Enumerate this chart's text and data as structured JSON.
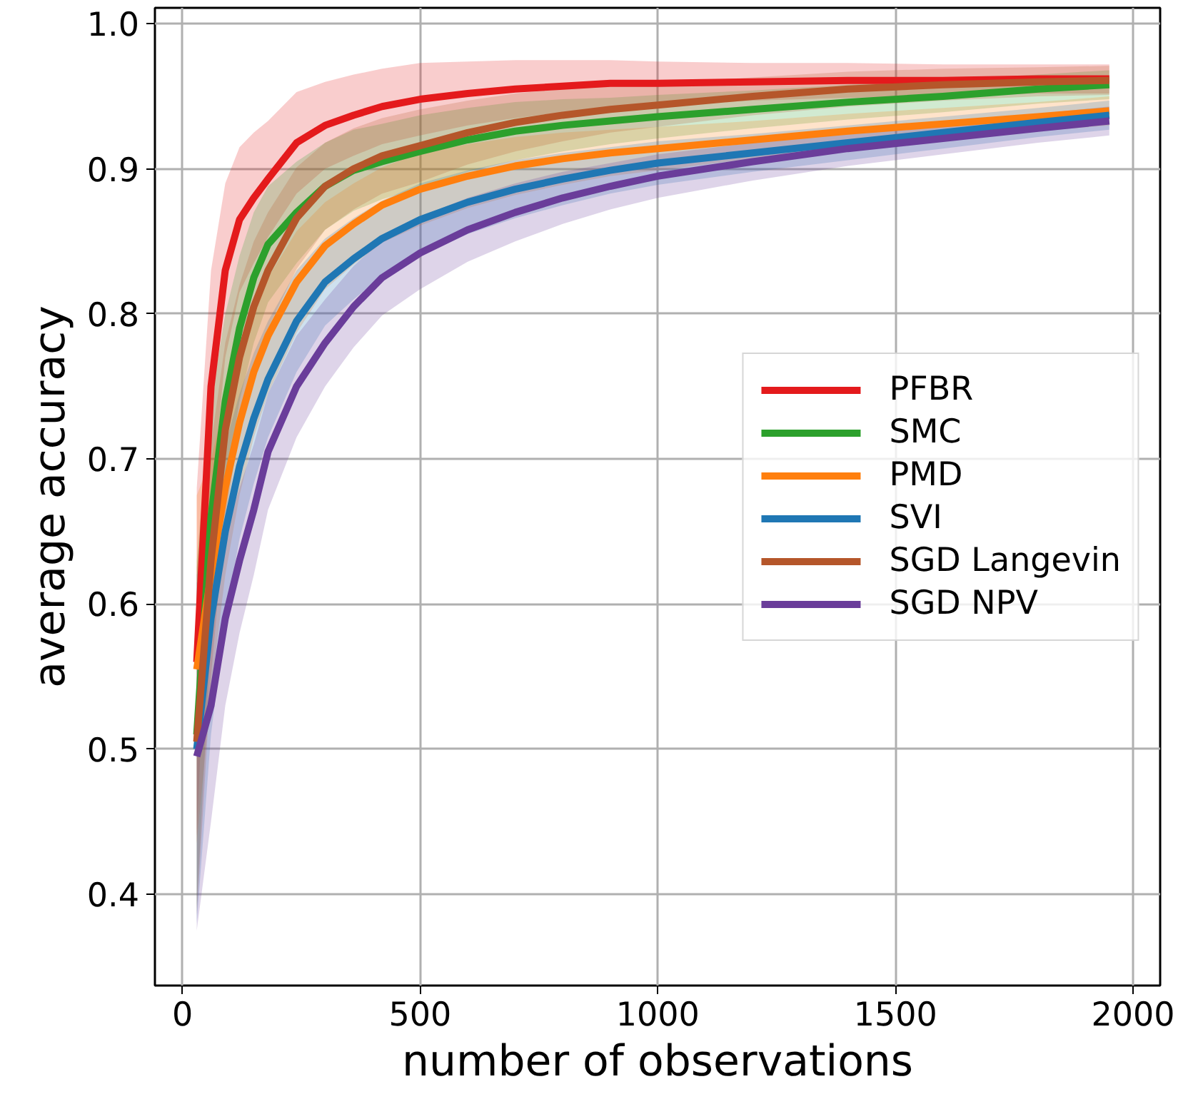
{
  "chart_data": {
    "type": "line",
    "xlabel": "number of observations",
    "ylabel": "average accuracy",
    "x": [
      30,
      60,
      90,
      120,
      150,
      180,
      240,
      300,
      360,
      420,
      500,
      600,
      700,
      800,
      900,
      1000,
      1200,
      1400,
      1600,
      1800,
      1950
    ],
    "xlim": [
      -58,
      2057
    ],
    "xticks": [
      0,
      500,
      1000,
      1500,
      2000
    ],
    "ylim": [
      0.337,
      1.011
    ],
    "yticks": [
      0.4,
      0.5,
      0.6,
      0.7,
      0.8,
      0.9,
      {
        "value": 1.0,
        "label": "1.0"
      }
    ],
    "grid": true,
    "legend": "right",
    "line_style": "solid",
    "series": [
      {
        "name": "PFBR",
        "color": "#e41a1c",
        "values": [
          0.56,
          0.75,
          0.83,
          0.865,
          0.88,
          0.893,
          0.918,
          0.93,
          0.937,
          0.943,
          0.948,
          0.952,
          0.955,
          0.957,
          0.959,
          0.959,
          0.96,
          0.961,
          0.961,
          0.962,
          0.962
        ],
        "lower": [
          0.44,
          0.67,
          0.77,
          0.815,
          0.835,
          0.853,
          0.883,
          0.9,
          0.909,
          0.917,
          0.923,
          0.93,
          0.935,
          0.939,
          0.943,
          0.944,
          0.947,
          0.949,
          0.95,
          0.952,
          0.952
        ],
        "upper": [
          0.68,
          0.83,
          0.89,
          0.915,
          0.925,
          0.933,
          0.953,
          0.96,
          0.965,
          0.969,
          0.973,
          0.974,
          0.975,
          0.975,
          0.975,
          0.974,
          0.973,
          0.973,
          0.972,
          0.972,
          0.972
        ]
      },
      {
        "name": "SMC",
        "color": "#2ca02c",
        "values": [
          0.51,
          0.66,
          0.74,
          0.79,
          0.825,
          0.848,
          0.87,
          0.888,
          0.899,
          0.905,
          0.912,
          0.92,
          0.926,
          0.93,
          0.933,
          0.936,
          0.941,
          0.946,
          0.95,
          0.955,
          0.958
        ],
        "lower": [
          0.39,
          0.58,
          0.68,
          0.74,
          0.78,
          0.808,
          0.835,
          0.858,
          0.871,
          0.879,
          0.887,
          0.898,
          0.906,
          0.912,
          0.917,
          0.921,
          0.928,
          0.934,
          0.939,
          0.945,
          0.948
        ],
        "upper": [
          0.63,
          0.74,
          0.8,
          0.84,
          0.87,
          0.888,
          0.905,
          0.918,
          0.927,
          0.931,
          0.937,
          0.942,
          0.946,
          0.948,
          0.949,
          0.951,
          0.954,
          0.958,
          0.961,
          0.965,
          0.968
        ]
      },
      {
        "name": "PMD",
        "color": "#ff7f0e",
        "values": [
          0.555,
          0.62,
          0.68,
          0.725,
          0.76,
          0.785,
          0.822,
          0.847,
          0.862,
          0.875,
          0.886,
          0.895,
          0.902,
          0.907,
          0.911,
          0.914,
          0.92,
          0.926,
          0.931,
          0.936,
          0.94
        ],
        "lower": [
          0.435,
          0.54,
          0.62,
          0.675,
          0.715,
          0.745,
          0.787,
          0.817,
          0.834,
          0.849,
          0.861,
          0.873,
          0.882,
          0.889,
          0.895,
          0.899,
          0.907,
          0.914,
          0.92,
          0.926,
          0.93
        ],
        "upper": [
          0.675,
          0.7,
          0.74,
          0.775,
          0.805,
          0.825,
          0.857,
          0.877,
          0.89,
          0.901,
          0.911,
          0.917,
          0.922,
          0.925,
          0.927,
          0.929,
          0.933,
          0.938,
          0.942,
          0.946,
          0.95
        ]
      },
      {
        "name": "SVI",
        "color": "#1f77b4",
        "values": [
          0.5,
          0.59,
          0.65,
          0.695,
          0.728,
          0.755,
          0.795,
          0.822,
          0.838,
          0.852,
          0.865,
          0.877,
          0.886,
          0.893,
          0.899,
          0.904,
          0.911,
          0.918,
          0.925,
          0.932,
          0.937
        ],
        "lower": [
          0.38,
          0.51,
          0.59,
          0.645,
          0.683,
          0.715,
          0.76,
          0.792,
          0.81,
          0.826,
          0.84,
          0.855,
          0.866,
          0.875,
          0.883,
          0.889,
          0.898,
          0.906,
          0.914,
          0.922,
          0.927
        ],
        "upper": [
          0.62,
          0.67,
          0.71,
          0.745,
          0.773,
          0.795,
          0.83,
          0.852,
          0.866,
          0.878,
          0.89,
          0.899,
          0.906,
          0.911,
          0.915,
          0.919,
          0.924,
          0.93,
          0.936,
          0.942,
          0.947
        ]
      },
      {
        "name": "SGD Langevin",
        "color": "#b5562a",
        "values": [
          0.505,
          0.63,
          0.72,
          0.77,
          0.805,
          0.83,
          0.866,
          0.888,
          0.9,
          0.909,
          0.916,
          0.925,
          0.932,
          0.937,
          0.941,
          0.944,
          0.95,
          0.955,
          0.958,
          0.96,
          0.961
        ],
        "lower": [
          0.385,
          0.55,
          0.66,
          0.72,
          0.76,
          0.79,
          0.831,
          0.858,
          0.872,
          0.883,
          0.891,
          0.903,
          0.912,
          0.919,
          0.925,
          0.929,
          0.937,
          0.943,
          0.947,
          0.95,
          0.951
        ],
        "upper": [
          0.625,
          0.71,
          0.78,
          0.82,
          0.85,
          0.87,
          0.901,
          0.918,
          0.928,
          0.935,
          0.941,
          0.947,
          0.952,
          0.955,
          0.957,
          0.959,
          0.963,
          0.967,
          0.969,
          0.97,
          0.971
        ]
      },
      {
        "name": "SGD NPV",
        "color": "#6a3d9a",
        "values": [
          0.495,
          0.53,
          0.59,
          0.63,
          0.665,
          0.705,
          0.75,
          0.78,
          0.805,
          0.825,
          0.842,
          0.858,
          0.87,
          0.88,
          0.888,
          0.895,
          0.905,
          0.914,
          0.921,
          0.928,
          0.933
        ],
        "lower": [
          0.375,
          0.45,
          0.53,
          0.58,
          0.62,
          0.665,
          0.715,
          0.75,
          0.777,
          0.799,
          0.817,
          0.836,
          0.85,
          0.862,
          0.872,
          0.88,
          0.892,
          0.902,
          0.91,
          0.918,
          0.923
        ],
        "upper": [
          0.615,
          0.61,
          0.65,
          0.68,
          0.71,
          0.745,
          0.785,
          0.81,
          0.833,
          0.851,
          0.867,
          0.88,
          0.89,
          0.898,
          0.904,
          0.91,
          0.918,
          0.926,
          0.932,
          0.938,
          0.943
        ]
      }
    ]
  }
}
